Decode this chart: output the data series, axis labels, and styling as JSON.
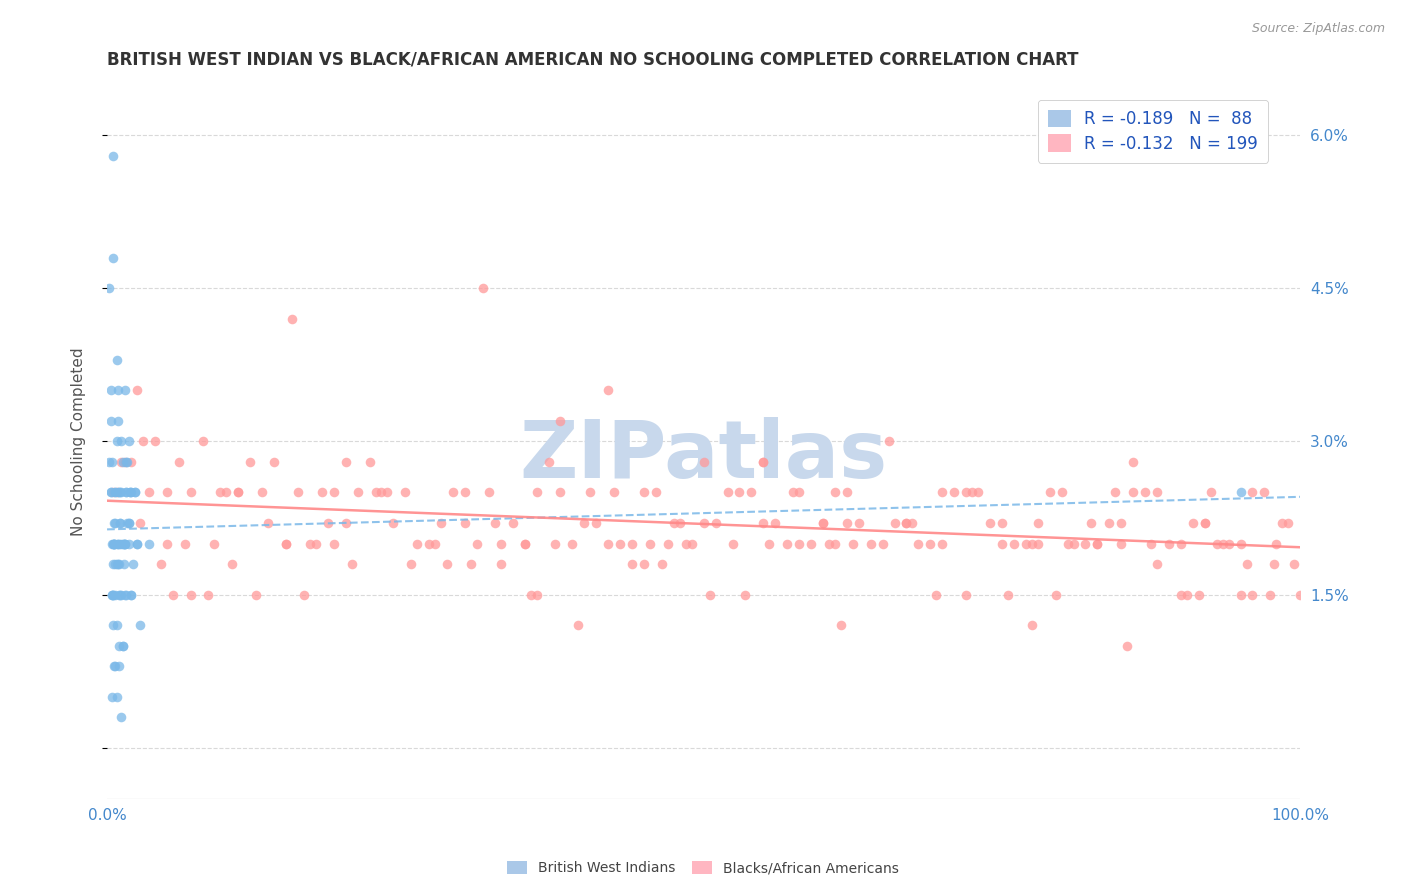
{
  "title": "BRITISH WEST INDIAN VS BLACK/AFRICAN AMERICAN NO SCHOOLING COMPLETED CORRELATION CHART",
  "source_text": "Source: ZipAtlas.com",
  "ylabel": "No Schooling Completed",
  "xlim": [
    0.0,
    100.0
  ],
  "ylim": [
    -0.5,
    6.5
  ],
  "yticks": [
    0.0,
    1.5,
    3.0,
    4.5,
    6.0
  ],
  "ytick_labels": [
    "",
    "1.5%",
    "3.0%",
    "4.5%",
    "6.0%"
  ],
  "xtick_labels": [
    "0.0%",
    "100.0%"
  ],
  "blue_scatter_color": "#7ab8e8",
  "pink_scatter_color": "#ff9999",
  "blue_line_color": "#7ab8e8",
  "pink_line_color": "#ff8888",
  "watermark_text": "ZIPatlas",
  "watermark_color": "#c8d8ec",
  "background_color": "#ffffff",
  "title_color": "#333333",
  "axis_label_color": "#555555",
  "tick_label_color": "#4488cc",
  "R_blue": -0.189,
  "N_blue": 88,
  "R_pink": -0.132,
  "N_pink": 199,
  "blue_scatter_x": [
    0.3,
    0.4,
    0.5,
    0.5,
    0.6,
    0.7,
    0.8,
    0.9,
    1.0,
    1.1,
    1.2,
    1.3,
    1.4,
    1.5,
    1.6,
    1.7,
    1.8,
    1.9,
    2.0,
    2.2,
    2.3,
    2.5,
    2.8,
    3.5,
    0.2,
    0.3,
    0.4,
    0.5,
    0.6,
    0.7,
    0.8,
    0.9,
    1.0,
    1.1,
    1.2,
    1.3,
    1.4,
    1.5,
    1.6,
    1.7,
    1.8,
    1.9,
    2.0,
    2.5,
    0.2,
    0.3,
    0.4,
    0.5,
    0.6,
    0.7,
    0.8,
    0.9,
    1.0,
    1.1,
    1.2,
    1.5,
    1.6,
    1.8,
    2.0,
    2.3,
    0.3,
    0.4,
    0.5,
    0.6,
    0.7,
    0.8,
    0.9,
    1.0,
    1.2,
    1.3,
    1.5,
    1.8,
    0.4,
    0.5,
    0.6,
    0.7,
    0.8,
    1.0,
    1.2,
    1.6,
    95.0,
    0.5,
    0.9,
    1.1,
    1.4,
    0.6,
    0.7,
    0.8,
    1.0,
    1.3
  ],
  "blue_scatter_y": [
    3.2,
    2.8,
    5.8,
    2.0,
    2.0,
    2.5,
    3.8,
    3.5,
    2.5,
    2.2,
    3.0,
    2.8,
    2.0,
    3.5,
    2.8,
    2.8,
    3.0,
    2.5,
    2.5,
    1.8,
    2.5,
    2.0,
    1.2,
    2.0,
    4.5,
    3.5,
    2.0,
    1.5,
    2.2,
    2.2,
    3.0,
    2.5,
    2.0,
    1.5,
    2.5,
    2.0,
    1.8,
    2.0,
    2.5,
    2.2,
    2.2,
    2.5,
    1.5,
    2.0,
    2.8,
    2.5,
    1.5,
    1.8,
    2.0,
    2.5,
    2.0,
    1.8,
    1.8,
    2.2,
    2.0,
    2.0,
    2.5,
    2.2,
    1.5,
    2.5,
    2.5,
    1.5,
    1.2,
    2.0,
    1.8,
    1.2,
    2.0,
    1.0,
    1.5,
    1.0,
    1.5,
    2.0,
    0.5,
    1.5,
    0.8,
    0.8,
    0.5,
    0.8,
    0.3,
    1.5,
    2.5,
    4.8,
    3.2,
    2.5,
    2.0,
    2.0,
    1.5,
    1.8,
    1.5,
    1.0
  ],
  "pink_scatter_x": [
    0.5,
    1.2,
    2.5,
    5.0,
    8.0,
    10.0,
    12.0,
    15.0,
    18.0,
    20.0,
    22.0,
    25.0,
    27.0,
    30.0,
    32.0,
    35.0,
    37.0,
    40.0,
    42.0,
    45.0,
    47.0,
    50.0,
    52.0,
    55.0,
    57.0,
    60.0,
    62.0,
    65.0,
    67.0,
    70.0,
    72.0,
    75.0,
    77.0,
    80.0,
    82.0,
    85.0,
    87.0,
    90.0,
    92.0,
    95.0,
    97.0,
    2.0,
    4.0,
    7.0,
    9.0,
    11.0,
    14.0,
    16.0,
    19.0,
    21.0,
    24.0,
    26.0,
    29.0,
    31.0,
    34.0,
    36.0,
    39.0,
    41.0,
    44.0,
    46.0,
    49.0,
    51.0,
    54.0,
    56.0,
    59.0,
    61.0,
    64.0,
    66.0,
    69.0,
    71.0,
    74.0,
    76.0,
    79.0,
    81.0,
    84.0,
    86.0,
    89.0,
    91.0,
    94.0,
    96.0,
    98.0,
    3.0,
    6.0,
    13.0,
    17.0,
    23.0,
    28.0,
    33.0,
    38.0,
    43.0,
    48.0,
    53.0,
    58.0,
    63.0,
    68.0,
    73.0,
    78.0,
    83.0,
    88.0,
    93.0,
    99.0,
    0.8,
    1.5,
    3.5,
    6.5,
    9.5,
    13.5,
    17.5,
    22.5,
    27.5,
    32.5,
    37.5,
    42.5,
    47.5,
    52.5,
    57.5,
    62.5,
    67.5,
    72.5,
    77.5,
    82.5,
    87.5,
    92.5,
    97.5,
    4.5,
    8.5,
    15.5,
    23.5,
    31.5,
    39.5,
    46.5,
    53.5,
    61.5,
    69.5,
    77.5,
    85.5,
    90.5,
    95.5,
    85.0,
    95.0,
    99.5,
    18.5,
    45.5,
    72.0,
    28.5,
    55.5,
    79.5,
    10.5,
    35.5,
    60.5,
    88.0,
    12.5,
    40.5,
    65.5,
    92.0,
    5.5,
    20.5,
    48.5,
    75.5,
    98.5,
    25.5,
    50.5,
    78.0,
    33.0,
    58.0,
    83.0,
    7.0,
    44.0,
    70.0,
    96.0,
    19.0,
    42.0,
    67.0,
    91.5,
    30.5,
    55.0,
    80.5,
    16.5,
    38.0,
    62.0,
    86.0,
    11.0,
    36.0,
    61.0,
    84.5,
    93.5,
    97.8,
    2.8,
    100.0,
    50.0,
    15.0,
    30.0,
    45.0,
    60.0,
    75.0,
    90.0,
    5.0,
    20.0,
    35.0,
    55.0
  ],
  "pink_scatter_y": [
    2.5,
    2.8,
    3.5,
    2.0,
    3.0,
    2.5,
    2.8,
    2.0,
    2.5,
    2.2,
    2.8,
    2.5,
    2.0,
    2.2,
    2.5,
    2.0,
    2.8,
    2.2,
    2.0,
    2.5,
    2.0,
    2.2,
    2.5,
    2.8,
    2.0,
    2.2,
    2.5,
    2.0,
    2.2,
    2.0,
    2.5,
    2.2,
    2.0,
    2.5,
    2.0,
    2.2,
    2.5,
    2.0,
    2.2,
    2.0,
    2.5,
    2.8,
    3.0,
    2.5,
    2.0,
    2.5,
    2.8,
    2.5,
    2.0,
    2.5,
    2.2,
    2.0,
    2.5,
    2.0,
    2.2,
    2.5,
    2.0,
    2.2,
    2.0,
    2.5,
    2.0,
    2.2,
    2.5,
    2.2,
    2.0,
    2.5,
    2.0,
    2.2,
    2.0,
    2.5,
    2.2,
    2.0,
    2.5,
    2.0,
    2.2,
    2.5,
    2.0,
    2.2,
    2.0,
    2.5,
    2.0,
    3.0,
    2.8,
    2.5,
    2.0,
    2.5,
    2.2,
    2.0,
    2.5,
    2.0,
    2.2,
    2.5,
    2.0,
    2.2,
    2.0,
    2.5,
    2.2,
    2.0,
    2.5,
    2.0,
    2.2,
    2.5,
    2.8,
    2.5,
    2.0,
    2.5,
    2.2,
    2.0,
    2.5,
    2.0,
    2.2,
    2.0,
    2.5,
    2.2,
    2.0,
    2.5,
    2.0,
    2.2,
    2.5,
    2.0,
    2.2,
    2.0,
    2.5,
    1.5,
    1.8,
    1.5,
    4.2,
    2.5,
    4.5,
    1.2,
    1.8,
    1.5,
    1.2,
    1.5,
    1.2,
    1.0,
    1.5,
    1.8,
    2.0,
    1.5,
    1.8,
    2.2,
    2.0,
    1.5,
    1.8,
    2.0,
    1.5,
    1.8,
    1.5,
    2.0,
    1.8,
    1.5,
    2.5,
    3.0,
    2.2,
    1.5,
    1.8,
    2.0,
    1.5,
    2.2,
    1.8,
    1.5,
    2.0,
    1.8,
    2.5,
    2.0,
    1.5,
    1.8,
    2.5,
    1.5,
    2.5,
    3.5,
    2.2,
    1.5,
    1.8,
    2.8,
    2.0,
    1.5,
    3.2,
    2.2,
    2.8,
    2.5,
    1.5,
    2.0,
    2.5,
    2.0,
    1.8,
    2.2,
    1.5,
    2.8,
    2.0,
    2.5,
    1.8,
    2.2,
    2.0,
    1.5,
    2.5,
    2.8,
    2.0,
    2.2
  ]
}
